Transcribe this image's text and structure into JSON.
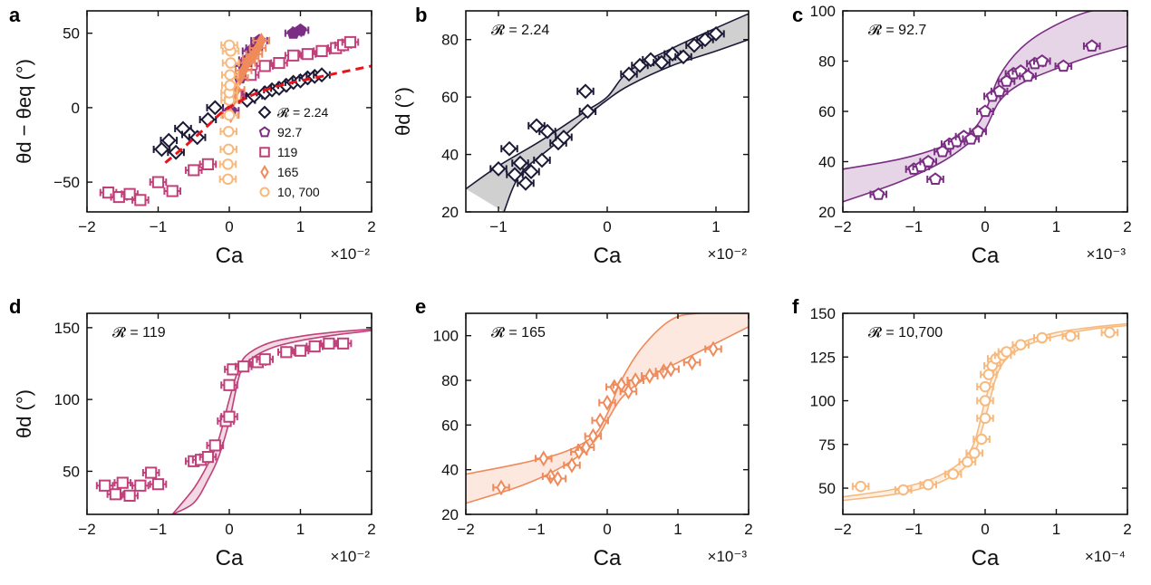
{
  "figure": {
    "colors": {
      "r224": "#1b1935",
      "r92": "#7b2d84",
      "r119": "#c1407a",
      "r165": "#ef8a5b",
      "r10700": "#f7b97d",
      "fit": "#e8141c",
      "band224": "#c8c8c8"
    },
    "legend": [
      {
        "label": "𝓡 = 2.24",
        "marker": "diamond",
        "color": "#1b1935"
      },
      {
        "label": "92.7",
        "marker": "pentagon",
        "color": "#7b2d84"
      },
      {
        "label": "119",
        "marker": "square",
        "color": "#c1407a"
      },
      {
        "label": "165",
        "marker": "thin-diamond",
        "color": "#ef8a5b"
      },
      {
        "label": "10, 700",
        "marker": "circle",
        "color": "#f7b97d"
      }
    ]
  },
  "chart_data": [
    {
      "panel": "a",
      "type": "scatter",
      "xlabel": "Ca",
      "multiplier": "×10⁻²",
      "ylabel": "θd − θeq (°)",
      "xlim": [
        -2,
        2
      ],
      "ylim": [
        -70,
        65
      ],
      "xticks": [
        "−2",
        "−1",
        "0",
        "1",
        "2"
      ],
      "xtick_values": [
        -2,
        -1,
        0,
        1,
        2
      ],
      "yticks": [
        "−50",
        "0",
        "50"
      ],
      "ytick_values": [
        -50,
        0,
        50
      ],
      "fit_line": {
        "style": "dashed",
        "color": "#e8141c",
        "x": [
          -0.9,
          -0.6,
          -0.3,
          -0.1,
          0.1,
          0.4,
          0.8,
          1.2,
          1.6,
          2.0
        ],
        "y": [
          -37,
          -25,
          -12,
          -3,
          3,
          10,
          16,
          20,
          24,
          28
        ]
      },
      "series": [
        {
          "name": "𝓡 = 2.24",
          "marker": "diamond",
          "x": [
            -0.95,
            -0.85,
            -0.75,
            -0.65,
            -0.55,
            -0.45,
            -0.3,
            -0.2,
            0.25,
            0.35,
            0.5,
            0.6,
            0.7,
            0.8,
            0.9,
            1.0,
            1.1,
            1.2,
            1.3
          ],
          "y": [
            -28,
            -22,
            -30,
            -14,
            -18,
            -20,
            -8,
            0,
            5,
            8,
            10,
            12,
            13,
            15,
            17,
            18,
            20,
            21,
            22
          ]
        },
        {
          "name": "92.7",
          "marker": "pentagon",
          "x": [
            0.02,
            0.08,
            0.15,
            0.2,
            0.25,
            0.3,
            0.35,
            0.42,
            0.9,
            1.0
          ],
          "y": [
            -2,
            10,
            20,
            28,
            32,
            38,
            40,
            45,
            50,
            52
          ]
        },
        {
          "name": "119",
          "marker": "square",
          "x": [
            -1.7,
            -1.55,
            -1.4,
            -1.25,
            -1.0,
            -0.8,
            -0.5,
            -0.3,
            0.1,
            0.3,
            0.5,
            0.7,
            0.9,
            1.1,
            1.3,
            1.5,
            1.6,
            1.7
          ],
          "y": [
            -57,
            -60,
            -58,
            -62,
            -50,
            -56,
            -42,
            -38,
            8,
            22,
            28,
            30,
            35,
            36,
            38,
            40,
            42,
            44
          ]
        },
        {
          "name": "165",
          "marker": "thin-diamond",
          "x": [
            0.02,
            0.05,
            0.1,
            0.15,
            0.2,
            0.25,
            0.3,
            0.35,
            0.4,
            0.45
          ],
          "y": [
            -5,
            5,
            12,
            20,
            25,
            30,
            33,
            36,
            40,
            45
          ]
        },
        {
          "name": "10, 700",
          "marker": "circle",
          "x": [
            -0.02,
            -0.02,
            -0.01,
            -0.01,
            0.0,
            0.0,
            0.0,
            0.01,
            0.01,
            0.02,
            0.02,
            0.0
          ],
          "y": [
            -48,
            -38,
            -28,
            -16,
            -5,
            5,
            10,
            15,
            22,
            30,
            38,
            42
          ]
        }
      ]
    },
    {
      "panel": "b",
      "type": "scatter",
      "annotation": "𝓡 = 2.24",
      "xlabel": "Ca",
      "multiplier": "×10⁻²",
      "ylabel": "θd (°)",
      "xlim": [
        -1.3,
        1.3
      ],
      "ylim": [
        20,
        90
      ],
      "xticks": [
        "−1",
        "0",
        "1"
      ],
      "xtick_values": [
        -1,
        0,
        1
      ],
      "yticks": [
        "20",
        "40",
        "60",
        "80"
      ],
      "ytick_values": [
        20,
        40,
        60,
        80
      ],
      "band": {
        "color": "#c8c8c8",
        "upper": {
          "x": [
            -1.3,
            -1.0,
            -0.6,
            -0.2,
            0.0,
            0.2,
            0.6,
            1.0,
            1.3
          ],
          "y": [
            28,
            36,
            45,
            55,
            60,
            69,
            77,
            84,
            89
          ]
        },
        "lower": {
          "x": [
            -0.95,
            -0.8,
            -0.5,
            -0.2,
            0.0,
            0.2,
            0.6,
            1.0,
            1.3
          ],
          "y": [
            20,
            33,
            43,
            53,
            59,
            64,
            71,
            76,
            80
          ]
        }
      },
      "series": [
        {
          "name": "𝓡 = 2.24",
          "marker": "diamond",
          "x": [
            -1.0,
            -0.9,
            -0.85,
            -0.8,
            -0.75,
            -0.7,
            -0.65,
            -0.6,
            -0.55,
            -0.45,
            -0.4,
            -0.2,
            -0.18,
            0.2,
            0.3,
            0.4,
            0.5,
            0.6,
            0.7,
            0.8,
            0.9,
            1.0
          ],
          "y": [
            35,
            42,
            33,
            37,
            30,
            34,
            50,
            38,
            48,
            44,
            46,
            62,
            55,
            68,
            71,
            73,
            72,
            75,
            74,
            78,
            80,
            82
          ]
        }
      ]
    },
    {
      "panel": "c",
      "type": "scatter",
      "annotation": "𝓡 = 92.7",
      "xlabel": "Ca",
      "multiplier": "×10⁻³",
      "xlim": [
        -2,
        2
      ],
      "ylim": [
        20,
        100
      ],
      "xticks": [
        "−2",
        "−1",
        "0",
        "1",
        "2"
      ],
      "xtick_values": [
        -2,
        -1,
        0,
        1,
        2
      ],
      "yticks": [
        "20",
        "40",
        "60",
        "80",
        "100"
      ],
      "ytick_values": [
        20,
        40,
        60,
        80,
        100
      ],
      "band": {
        "color": "#7b2d84",
        "upper": {
          "x": [
            -2,
            -1.2,
            -0.6,
            -0.2,
            0.0,
            0.2,
            0.5,
            0.9,
            1.5,
            2.0
          ],
          "y": [
            37,
            41,
            46,
            52,
            60,
            74,
            85,
            93,
            100,
            100
          ]
        },
        "lower": {
          "x": [
            -2,
            -1.2,
            -0.6,
            -0.2,
            0.0,
            0.2,
            0.5,
            1.0,
            1.5,
            2.0
          ],
          "y": [
            24,
            32,
            40,
            48,
            53,
            64,
            71,
            77,
            82,
            86
          ]
        }
      },
      "series": [
        {
          "name": "92.7",
          "marker": "pentagon",
          "x": [
            -1.5,
            -1.0,
            -0.9,
            -0.8,
            -0.7,
            -0.6,
            -0.5,
            -0.4,
            -0.3,
            -0.2,
            -0.1,
            0.0,
            0.1,
            0.2,
            0.3,
            0.4,
            0.5,
            0.6,
            0.7,
            0.8,
            1.1,
            1.5
          ],
          "y": [
            27,
            37,
            38,
            40,
            33,
            44,
            47,
            48,
            50,
            49,
            52,
            60,
            66,
            68,
            72,
            75,
            76,
            74,
            79,
            80,
            78,
            86
          ]
        }
      ]
    },
    {
      "panel": "d",
      "type": "scatter",
      "annotation": "𝓡 = 119",
      "xlabel": "Ca",
      "multiplier": "×10⁻²",
      "ylabel": "θd (°)",
      "xlim": [
        -2,
        2
      ],
      "ylim": [
        20,
        160
      ],
      "xticks": [
        "−2",
        "−1",
        "0",
        "1",
        "2"
      ],
      "xtick_values": [
        -2,
        -1,
        0,
        1,
        2
      ],
      "yticks": [
        "50",
        "100",
        "150"
      ],
      "ytick_values": [
        50,
        100,
        150
      ],
      "band": {
        "color": "#c1407a",
        "upper": {
          "x": [
            -0.8,
            -0.5,
            -0.3,
            -0.15,
            0.0,
            0.15,
            0.3,
            0.6,
            1.0,
            1.5,
            2.0
          ],
          "y": [
            20,
            38,
            55,
            72,
            100,
            124,
            133,
            140,
            144,
            147,
            149
          ]
        },
        "lower": {
          "x": [
            -0.8,
            -0.5,
            -0.3,
            -0.15,
            0.0,
            0.15,
            0.3,
            0.6,
            1.0,
            1.5,
            2.0
          ],
          "y": [
            20,
            28,
            44,
            60,
            85,
            118,
            128,
            136,
            141,
            145,
            148
          ]
        }
      },
      "series": [
        {
          "name": "119",
          "marker": "square",
          "x": [
            -1.75,
            -1.6,
            -1.5,
            -1.4,
            -1.25,
            -1.1,
            -1.0,
            -0.5,
            -0.4,
            -0.3,
            -0.2,
            -0.05,
            0.0,
            0.0,
            0.05,
            0.2,
            0.4,
            0.5,
            0.8,
            1.0,
            1.2,
            1.4,
            1.6
          ],
          "y": [
            40,
            34,
            42,
            33,
            40,
            49,
            41,
            57,
            58,
            60,
            68,
            85,
            88,
            110,
            121,
            123,
            126,
            128,
            133,
            134,
            137,
            139,
            139
          ]
        }
      ]
    },
    {
      "panel": "e",
      "type": "scatter",
      "annotation": "𝓡 = 165",
      "xlabel": "Ca",
      "multiplier": "×10⁻³",
      "xlim": [
        -2,
        2
      ],
      "ylim": [
        20,
        110
      ],
      "xticks": [
        "−2",
        "−1",
        "0",
        "1",
        "2"
      ],
      "xtick_values": [
        -2,
        -1,
        0,
        1,
        2
      ],
      "yticks": [
        "20",
        "40",
        "60",
        "80",
        "100"
      ],
      "ytick_values": [
        20,
        40,
        60,
        80,
        100
      ],
      "band": {
        "color": "#ef8a5b",
        "upper": {
          "x": [
            -2,
            -1.2,
            -0.6,
            -0.2,
            0.0,
            0.2,
            0.5,
            0.9,
            1.3,
            2.0
          ],
          "y": [
            38,
            43,
            48,
            55,
            65,
            80,
            95,
            107,
            110,
            110
          ]
        },
        "lower": {
          "x": [
            -2,
            -1.2,
            -0.6,
            -0.2,
            0.0,
            0.2,
            0.5,
            1.0,
            1.5,
            2.0
          ],
          "y": [
            25,
            33,
            42,
            52,
            62,
            72,
            80,
            88,
            96,
            104
          ]
        }
      },
      "series": [
        {
          "name": "165",
          "marker": "thin-diamond",
          "x": [
            -1.5,
            -0.9,
            -0.8,
            -0.7,
            -0.5,
            -0.4,
            -0.3,
            -0.2,
            -0.1,
            0.0,
            0.1,
            0.2,
            0.3,
            0.4,
            0.6,
            0.8,
            0.9,
            1.2,
            1.5
          ],
          "y": [
            32,
            45,
            37,
            36,
            42,
            48,
            50,
            55,
            62,
            70,
            77,
            78,
            75,
            80,
            82,
            84,
            85,
            88,
            94
          ]
        }
      ]
    },
    {
      "panel": "f",
      "type": "scatter",
      "annotation": "𝓡 = 10,700",
      "xlabel": "Ca",
      "multiplier": "×10⁻⁴",
      "xlim": [
        -2,
        2
      ],
      "ylim": [
        35,
        150
      ],
      "xticks": [
        "−2",
        "−1",
        "0",
        "1",
        "2"
      ],
      "xtick_values": [
        -2,
        -1,
        0,
        1,
        2
      ],
      "yticks": [
        "50",
        "75",
        "100",
        "125",
        "150"
      ],
      "ytick_values": [
        50,
        75,
        100,
        125,
        150
      ],
      "band": {
        "color": "#f7b97d",
        "upper": {
          "x": [
            -2,
            -1.2,
            -0.6,
            -0.2,
            0.0,
            0.2,
            0.5,
            1.0,
            1.5,
            2.0
          ],
          "y": [
            45,
            50,
            58,
            72,
            100,
            124,
            133,
            139,
            142,
            144
          ]
        },
        "lower": {
          "x": [
            -2,
            -1.2,
            -0.6,
            -0.2,
            0.0,
            0.2,
            0.5,
            1.0,
            1.5,
            2.0
          ],
          "y": [
            43,
            47,
            54,
            66,
            90,
            118,
            130,
            137,
            141,
            143
          ]
        }
      },
      "series": [
        {
          "name": "10, 700",
          "marker": "circle",
          "x": [
            -1.75,
            -1.15,
            -0.8,
            -0.45,
            -0.25,
            -0.15,
            -0.05,
            0.0,
            0.0,
            0.0,
            0.05,
            0.1,
            0.15,
            0.25,
            0.3,
            0.5,
            0.8,
            1.2,
            1.75
          ],
          "y": [
            51,
            49,
            52,
            58,
            65,
            70,
            78,
            90,
            100,
            108,
            115,
            120,
            124,
            126,
            128,
            132,
            136,
            137,
            139
          ]
        }
      ]
    }
  ],
  "panel_letters": [
    "a",
    "b",
    "c",
    "d",
    "e",
    "f"
  ]
}
